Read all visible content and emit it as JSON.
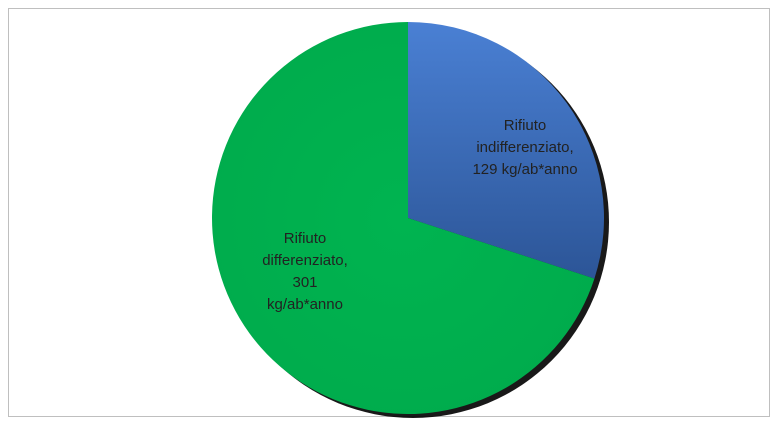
{
  "chart_data": {
    "type": "pie",
    "categories": [
      "Rifiuto indifferenziato,",
      "Rifiuto differenziato,"
    ],
    "values": [
      129,
      301
    ],
    "value_labels": [
      "129 kg/ab*anno",
      "301 kg/ab*anno"
    ],
    "colors": [
      "#3c6fc2",
      "#00b050"
    ]
  }
}
